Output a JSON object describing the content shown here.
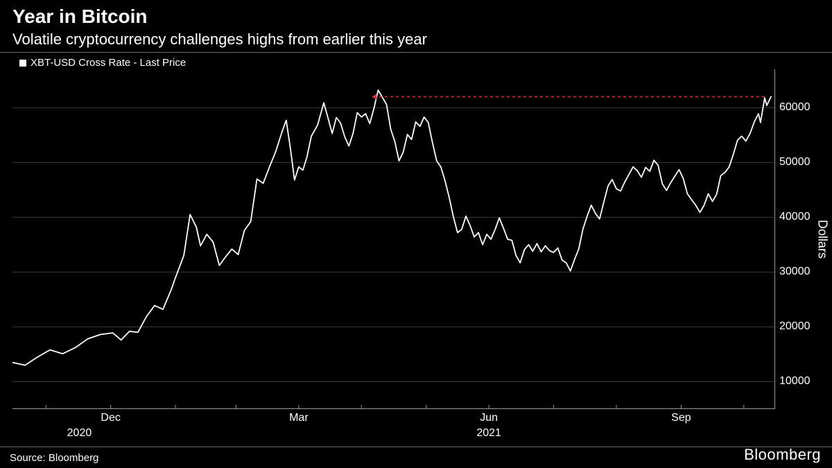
{
  "title": "Year in Bitcoin",
  "subtitle": "Volatile cryptocurrency challenges highs from earlier this year",
  "legend_label": "XBT-USD Cross Rate - Last Price",
  "source": "Source: Bloomberg",
  "brand": "Bloomberg",
  "colors": {
    "background": "#000000",
    "text": "#ffffff",
    "line": "#ffffff",
    "grid": "#3a3a3a",
    "axis": "#9a9a9a",
    "annotation": "#d8343a"
  },
  "chart": {
    "type": "line",
    "x_domain": [
      0,
      365
    ],
    "y_domain": [
      5000,
      67000
    ],
    "y_ticks": [
      10000,
      20000,
      30000,
      40000,
      50000,
      60000
    ],
    "y_title": "Dollars",
    "y_title_fontsize": 18,
    "tick_fontsize": 16,
    "line_width": 1.8,
    "x_ticks": [
      {
        "x": 47,
        "label": "Dec"
      },
      {
        "x": 137,
        "label": "Mar"
      },
      {
        "x": 228,
        "label": "Jun"
      },
      {
        "x": 320,
        "label": "Sep"
      }
    ],
    "x_year_ticks": [
      {
        "x": 32,
        "label": "2020"
      },
      {
        "x": 228,
        "label": "2021"
      }
    ],
    "x_minor_ticks": [
      16,
      47,
      78,
      107,
      137,
      167,
      198,
      228,
      259,
      289,
      320,
      350
    ],
    "annotation": {
      "y": 62000,
      "x_start": 172,
      "x_end": 360,
      "dash": "4 4",
      "width": 1.5
    },
    "series": [
      {
        "x": 0,
        "y": 13500
      },
      {
        "x": 6,
        "y": 13000
      },
      {
        "x": 12,
        "y": 14500
      },
      {
        "x": 18,
        "y": 15800
      },
      {
        "x": 24,
        "y": 15100
      },
      {
        "x": 30,
        "y": 16200
      },
      {
        "x": 36,
        "y": 17800
      },
      {
        "x": 42,
        "y": 18600
      },
      {
        "x": 48,
        "y": 18900
      },
      {
        "x": 52,
        "y": 17600
      },
      {
        "x": 56,
        "y": 19200
      },
      {
        "x": 60,
        "y": 19000
      },
      {
        "x": 64,
        "y": 21800
      },
      {
        "x": 68,
        "y": 23900
      },
      {
        "x": 72,
        "y": 23200
      },
      {
        "x": 76,
        "y": 26800
      },
      {
        "x": 78,
        "y": 29000
      },
      {
        "x": 82,
        "y": 33000
      },
      {
        "x": 85,
        "y": 40500
      },
      {
        "x": 88,
        "y": 38200
      },
      {
        "x": 90,
        "y": 34800
      },
      {
        "x": 93,
        "y": 36900
      },
      {
        "x": 96,
        "y": 35500
      },
      {
        "x": 99,
        "y": 31200
      },
      {
        "x": 102,
        "y": 32800
      },
      {
        "x": 105,
        "y": 34200
      },
      {
        "x": 108,
        "y": 33200
      },
      {
        "x": 111,
        "y": 37600
      },
      {
        "x": 114,
        "y": 39200
      },
      {
        "x": 117,
        "y": 47000
      },
      {
        "x": 120,
        "y": 46200
      },
      {
        "x": 123,
        "y": 49200
      },
      {
        "x": 126,
        "y": 52000
      },
      {
        "x": 129,
        "y": 55600
      },
      {
        "x": 131,
        "y": 57700
      },
      {
        "x": 133,
        "y": 52600
      },
      {
        "x": 135,
        "y": 46800
      },
      {
        "x": 137,
        "y": 49200
      },
      {
        "x": 139,
        "y": 48600
      },
      {
        "x": 141,
        "y": 51100
      },
      {
        "x": 143,
        "y": 54800
      },
      {
        "x": 146,
        "y": 56800
      },
      {
        "x": 149,
        "y": 60900
      },
      {
        "x": 151,
        "y": 58100
      },
      {
        "x": 153,
        "y": 55300
      },
      {
        "x": 155,
        "y": 58200
      },
      {
        "x": 157,
        "y": 57200
      },
      {
        "x": 159,
        "y": 54700
      },
      {
        "x": 161,
        "y": 53000
      },
      {
        "x": 163,
        "y": 55300
      },
      {
        "x": 165,
        "y": 59100
      },
      {
        "x": 167,
        "y": 58300
      },
      {
        "x": 169,
        "y": 58900
      },
      {
        "x": 171,
        "y": 57100
      },
      {
        "x": 173,
        "y": 59900
      },
      {
        "x": 175,
        "y": 63200
      },
      {
        "x": 177,
        "y": 61900
      },
      {
        "x": 179,
        "y": 60600
      },
      {
        "x": 181,
        "y": 56100
      },
      {
        "x": 183,
        "y": 53800
      },
      {
        "x": 185,
        "y": 50300
      },
      {
        "x": 187,
        "y": 51900
      },
      {
        "x": 189,
        "y": 55100
      },
      {
        "x": 191,
        "y": 54200
      },
      {
        "x": 193,
        "y": 57400
      },
      {
        "x": 195,
        "y": 56600
      },
      {
        "x": 197,
        "y": 58300
      },
      {
        "x": 199,
        "y": 57300
      },
      {
        "x": 201,
        "y": 53600
      },
      {
        "x": 203,
        "y": 50300
      },
      {
        "x": 205,
        "y": 49200
      },
      {
        "x": 207,
        "y": 46700
      },
      {
        "x": 209,
        "y": 43600
      },
      {
        "x": 211,
        "y": 40100
      },
      {
        "x": 213,
        "y": 37200
      },
      {
        "x": 215,
        "y": 37800
      },
      {
        "x": 217,
        "y": 40200
      },
      {
        "x": 219,
        "y": 38500
      },
      {
        "x": 221,
        "y": 36400
      },
      {
        "x": 223,
        "y": 37200
      },
      {
        "x": 225,
        "y": 35000
      },
      {
        "x": 227,
        "y": 36900
      },
      {
        "x": 229,
        "y": 36000
      },
      {
        "x": 231,
        "y": 37800
      },
      {
        "x": 233,
        "y": 39900
      },
      {
        "x": 235,
        "y": 38000
      },
      {
        "x": 237,
        "y": 36000
      },
      {
        "x": 239,
        "y": 35800
      },
      {
        "x": 241,
        "y": 33000
      },
      {
        "x": 243,
        "y": 31700
      },
      {
        "x": 245,
        "y": 34100
      },
      {
        "x": 247,
        "y": 35000
      },
      {
        "x": 249,
        "y": 33800
      },
      {
        "x": 251,
        "y": 35200
      },
      {
        "x": 253,
        "y": 33700
      },
      {
        "x": 255,
        "y": 34800
      },
      {
        "x": 257,
        "y": 33900
      },
      {
        "x": 259,
        "y": 33600
      },
      {
        "x": 261,
        "y": 34400
      },
      {
        "x": 263,
        "y": 32200
      },
      {
        "x": 265,
        "y": 31700
      },
      {
        "x": 267,
        "y": 30200
      },
      {
        "x": 269,
        "y": 32300
      },
      {
        "x": 271,
        "y": 34200
      },
      {
        "x": 273,
        "y": 37800
      },
      {
        "x": 275,
        "y": 40200
      },
      {
        "x": 277,
        "y": 42200
      },
      {
        "x": 279,
        "y": 40700
      },
      {
        "x": 281,
        "y": 39700
      },
      {
        "x": 283,
        "y": 42800
      },
      {
        "x": 285,
        "y": 45700
      },
      {
        "x": 287,
        "y": 46900
      },
      {
        "x": 289,
        "y": 45200
      },
      {
        "x": 291,
        "y": 44800
      },
      {
        "x": 293,
        "y": 46400
      },
      {
        "x": 295,
        "y": 47800
      },
      {
        "x": 297,
        "y": 49200
      },
      {
        "x": 299,
        "y": 48500
      },
      {
        "x": 301,
        "y": 47300
      },
      {
        "x": 303,
        "y": 49100
      },
      {
        "x": 305,
        "y": 48400
      },
      {
        "x": 307,
        "y": 50400
      },
      {
        "x": 309,
        "y": 49500
      },
      {
        "x": 311,
        "y": 46100
      },
      {
        "x": 313,
        "y": 44900
      },
      {
        "x": 315,
        "y": 46300
      },
      {
        "x": 317,
        "y": 47500
      },
      {
        "x": 319,
        "y": 48700
      },
      {
        "x": 321,
        "y": 47100
      },
      {
        "x": 323,
        "y": 44300
      },
      {
        "x": 325,
        "y": 43200
      },
      {
        "x": 327,
        "y": 42200
      },
      {
        "x": 329,
        "y": 40900
      },
      {
        "x": 331,
        "y": 42200
      },
      {
        "x": 333,
        "y": 44300
      },
      {
        "x": 335,
        "y": 42900
      },
      {
        "x": 337,
        "y": 44200
      },
      {
        "x": 339,
        "y": 47600
      },
      {
        "x": 341,
        "y": 48200
      },
      {
        "x": 343,
        "y": 49200
      },
      {
        "x": 345,
        "y": 51500
      },
      {
        "x": 347,
        "y": 54100
      },
      {
        "x": 349,
        "y": 54800
      },
      {
        "x": 351,
        "y": 53900
      },
      {
        "x": 353,
        "y": 55300
      },
      {
        "x": 355,
        "y": 57400
      },
      {
        "x": 357,
        "y": 58900
      },
      {
        "x": 358,
        "y": 57300
      },
      {
        "x": 360,
        "y": 61800
      },
      {
        "x": 361,
        "y": 60400
      },
      {
        "x": 363,
        "y": 62000
      }
    ]
  }
}
